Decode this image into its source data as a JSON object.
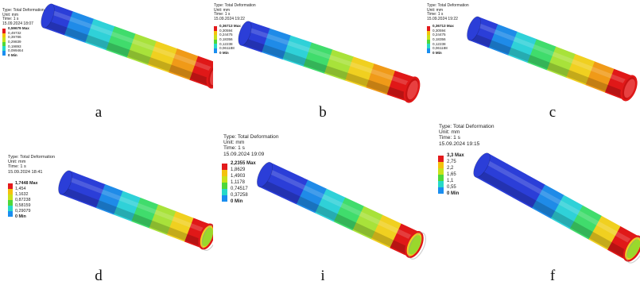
{
  "panels": [
    {
      "id": "a",
      "letter": "a",
      "info": {
        "type": "Type: Total Deformation",
        "unit": "Unit: mm",
        "time": "Time: 1 s",
        "date": "15.09.2024 18:07"
      },
      "legend": [
        "0,59679 Max",
        "0,49732",
        "0,39786",
        "0,29839",
        "0,19893",
        "0,099464",
        "0 Min"
      ],
      "legend_colors": [
        "#e31a1c",
        "#f4c20d",
        "#c8e21a",
        "#4fd83a",
        "#27d9c8",
        "#1a8ef0",
        "#1a1ad6"
      ],
      "pipe_bands": [
        "#2b3ed8",
        "#1f8be8",
        "#2fd1d8",
        "#40dc6c",
        "#a8e23a",
        "#f0d020",
        "#f09a18",
        "#e01818"
      ],
      "cut": "end"
    },
    {
      "id": "b",
      "letter": "b",
      "info": {
        "type": "Type: Total Deformation",
        "unit": "Unit: mm",
        "time": "Time: 1 s",
        "date": "15.09.2024 19:22"
      },
      "legend": [
        "0,36713 Max",
        "0,30594",
        "0,24475",
        "0,18356",
        "0,12238",
        "0,061188",
        "0 Min"
      ],
      "legend_colors": [
        "#e31a1c",
        "#f4c20d",
        "#c8e21a",
        "#4fd83a",
        "#27d9c8",
        "#1a8ef0",
        "#1a1ad6"
      ],
      "pipe_bands": [
        "#2b3ed8",
        "#1f8be8",
        "#2fd1d8",
        "#40dc6c",
        "#a8e23a",
        "#f0d020",
        "#f09a18",
        "#e01818"
      ],
      "cut": "end"
    },
    {
      "id": "c",
      "letter": "c",
      "info": {
        "type": "Type: Total Deformation",
        "unit": "Unit: mm",
        "time": "Time: 1 s",
        "date": "15.09.2024 19:22"
      },
      "legend": [
        "0,36713 Max",
        "0,30594",
        "0,24475",
        "0,18356",
        "0,12238",
        "0,061188",
        "0 Min"
      ],
      "legend_colors": [
        "#e31a1c",
        "#f4c20d",
        "#c8e21a",
        "#4fd83a",
        "#27d9c8",
        "#1a8ef0",
        "#1a1ad6"
      ],
      "pipe_bands": [
        "#2b3ed8",
        "#1f8be8",
        "#2fd1d8",
        "#40dc6c",
        "#a8e23a",
        "#f0d020",
        "#f09a18",
        "#e01818"
      ],
      "cut": "end"
    },
    {
      "id": "d",
      "letter": "d",
      "info": {
        "type": "Type: Total Deformation",
        "unit": "Unit: mm",
        "time": "Time: 1 s",
        "date": "15.09.2024 18:41"
      },
      "legend": [
        "1,7448 Max",
        "1,454",
        "1,1632",
        "0,87238",
        "0,58159",
        "0,29079",
        "0 Min"
      ],
      "legend_colors": [
        "#e31a1c",
        "#f4c20d",
        "#c8e21a",
        "#4fd83a",
        "#27d9c8",
        "#1a8ef0",
        "#1a1ad6"
      ],
      "pipe_bands": [
        "#2b3ed8",
        "#2b3ed8",
        "#1f8be8",
        "#2fd1d8",
        "#40dc6c",
        "#a8e23a",
        "#f0d020",
        "#e01818"
      ],
      "cut": "slant"
    },
    {
      "id": "i",
      "letter": "i",
      "info": {
        "type": "Type: Total Deformation",
        "unit": "Unit: mm",
        "time": "Time: 1 s",
        "date": "15.09.2024 19:09"
      },
      "legend": [
        "2,2355 Max",
        "1,8629",
        "1,4903",
        "1,1178",
        "0,74517",
        "0,37258",
        "0 Min"
      ],
      "legend_colors": [
        "#e31a1c",
        "#f4c20d",
        "#c8e21a",
        "#4fd83a",
        "#27d9c8",
        "#1a8ef0",
        "#1a1ad6"
      ],
      "pipe_bands": [
        "#2b3ed8",
        "#2b3ed8",
        "#1f8be8",
        "#2fd1d8",
        "#40dc6c",
        "#a8e23a",
        "#f0d020",
        "#e01818"
      ],
      "cut": "slant"
    },
    {
      "id": "f",
      "letter": "f",
      "info": {
        "type": "Type: Total Deformation",
        "unit": "Unit: mm",
        "time": "Time: 1 s",
        "date": "15.09.2024 19:15"
      },
      "legend": [
        "3,3 Max",
        "2,75",
        "2,2",
        "1,65",
        "1,1",
        "0,55",
        "0 Min"
      ],
      "legend_colors": [
        "#e31a1c",
        "#f4c20d",
        "#c8e21a",
        "#4fd83a",
        "#27d9c8",
        "#1a8ef0",
        "#1a1ad6"
      ],
      "pipe_bands": [
        "#2b3ed8",
        "#2b3ed8",
        "#2b3ed8",
        "#1f8be8",
        "#2fd1d8",
        "#40dc6c",
        "#f0d020",
        "#e01818"
      ],
      "cut": "slant"
    }
  ]
}
